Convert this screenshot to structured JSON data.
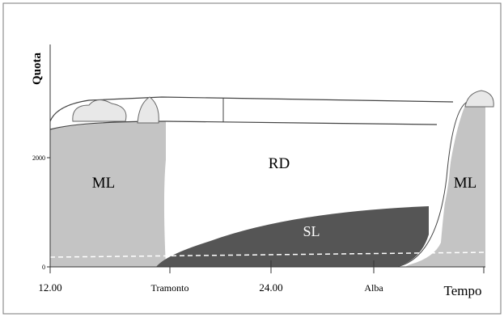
{
  "axes": {
    "y_label": "Quota",
    "x_label": "Tempo",
    "x_ticks": [
      "12.00",
      "Tramonto",
      "24.00",
      "Alba"
    ],
    "y_ticks": [
      "2000",
      "0"
    ]
  },
  "regions": [
    "ML",
    "RD",
    "SL",
    "ML"
  ]
}
